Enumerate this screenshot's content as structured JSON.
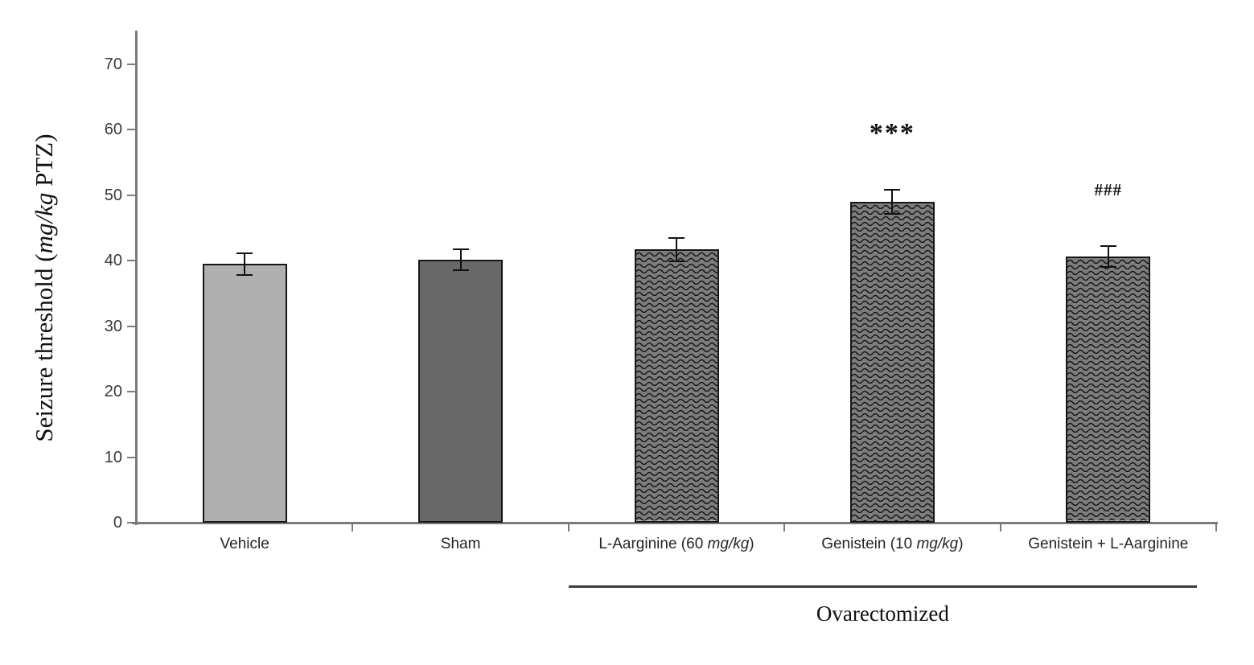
{
  "chart_data": {
    "type": "bar",
    "title": "",
    "ylabel_parts": {
      "pre": "Seizure threshold (",
      "italic": "mg/kg",
      "post": " PTZ)"
    },
    "ylabel_text": "Seizure threshold (mg/kg PTZ)",
    "ylim": [
      0,
      70
    ],
    "yticks": [
      0,
      10,
      20,
      30,
      40,
      50,
      60,
      70
    ],
    "grid": "off",
    "legend": "none",
    "categories": [
      {
        "pre": "Vehicle",
        "italic": "",
        "post": ""
      },
      {
        "pre": "Sham",
        "italic": "",
        "post": ""
      },
      {
        "pre": "L-Aarginine (60 ",
        "italic": "mg/kg",
        "post": ")"
      },
      {
        "pre": "Genistein (10 ",
        "italic": "mg/kg",
        "post": ")"
      },
      {
        "pre": "Genistein + L-Aarginine",
        "italic": "",
        "post": ""
      }
    ],
    "values": [
      39.5,
      40.2,
      41.7,
      49,
      40.6
    ],
    "errors": [
      1.7,
      1.6,
      1.8,
      1.8,
      1.6
    ],
    "bar_styles": [
      "solid_light",
      "solid_dark",
      "wave",
      "wave",
      "wave"
    ],
    "annotations": [
      {
        "bar_index": 3,
        "text": "***"
      },
      {
        "bar_index": 4,
        "text": "###"
      }
    ],
    "group_label": {
      "text": "Ovarectomized",
      "from_bar": 2,
      "to_bar": 4
    },
    "colors": {
      "solid_light": "#b0b0b0",
      "solid_dark": "#686868",
      "wave_bg": "#7d7d7d",
      "wave_line": "#161616",
      "bar_stroke": "#161616",
      "axis": "#7a7a7a",
      "error_bar": "#111111",
      "tick_text": "#3a3a3a"
    }
  }
}
